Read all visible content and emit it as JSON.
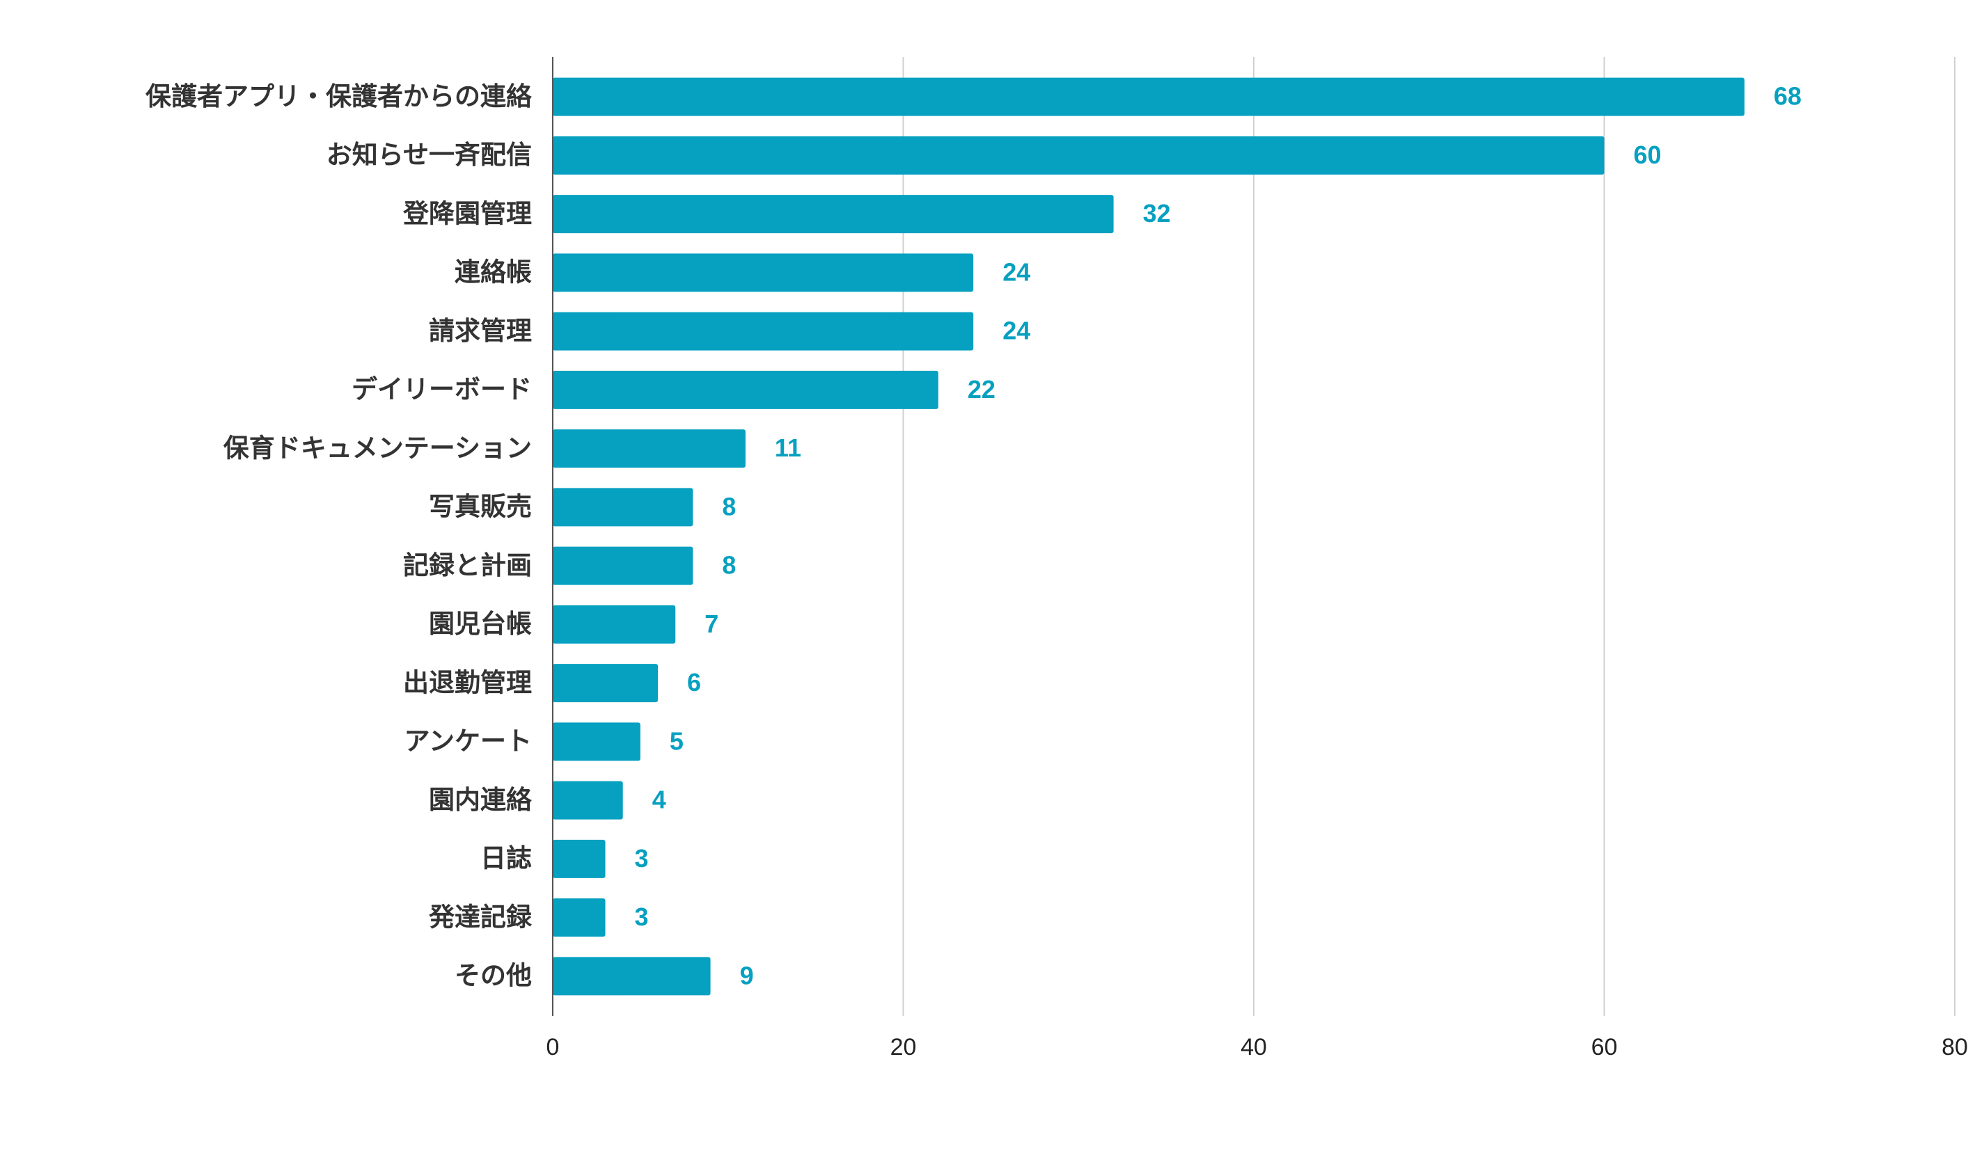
{
  "chart_data": {
    "type": "barh",
    "categories": [
      "保護者アプリ・保護者からの連絡",
      "お知らせ一斉配信",
      "登降園管理",
      "連絡帳",
      "請求管理",
      "デイリーボード",
      "保育ドキュメンテーション",
      "写真販売",
      "記録と計画",
      "園児台帳",
      "出退勤管理",
      "アンケート",
      "園内連絡",
      "日誌",
      "発達記録",
      "その他"
    ],
    "values": [
      68,
      60,
      32,
      24,
      24,
      22,
      11,
      8,
      8,
      7,
      6,
      5,
      4,
      3,
      3,
      9
    ],
    "color": "#06a0c0",
    "xlim": [
      0,
      80
    ],
    "xticks": [
      0,
      20,
      40,
      60,
      80
    ],
    "grid": true
  }
}
